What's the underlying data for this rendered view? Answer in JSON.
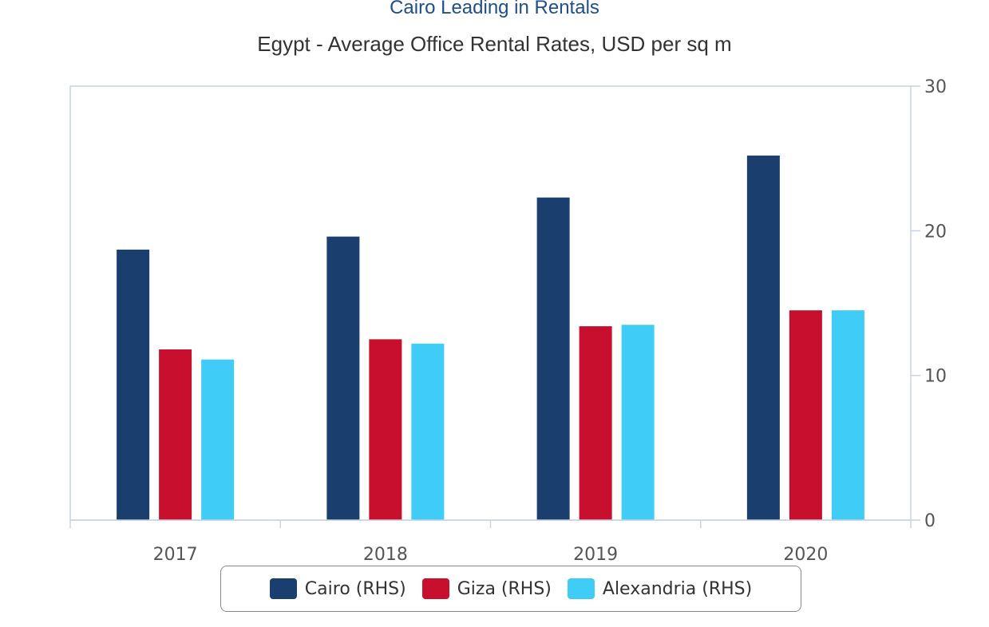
{
  "header": {
    "title": "Cairo Leading in Rentals",
    "subtitle": "Egypt - Average Office Rental Rates, USD per sq m"
  },
  "chart_data": {
    "type": "bar",
    "categories": [
      "2017",
      "2018",
      "2019",
      "2020"
    ],
    "series": [
      {
        "name": "Cairo (RHS)",
        "color": "#1a3f6e",
        "values": [
          18.7,
          19.6,
          22.3,
          25.2
        ]
      },
      {
        "name": "Giza (RHS)",
        "color": "#c8102e",
        "values": [
          11.8,
          12.5,
          13.4,
          14.5
        ]
      },
      {
        "name": "Alexandria (RHS)",
        "color": "#3fcdf7",
        "values": [
          11.1,
          12.2,
          13.5,
          14.5
        ]
      }
    ],
    "y_axis": {
      "position": "right",
      "ylim": [
        0,
        30
      ],
      "ticks": [
        "0",
        "10",
        "20",
        "30"
      ]
    },
    "grid": false,
    "legend": "bottom"
  }
}
